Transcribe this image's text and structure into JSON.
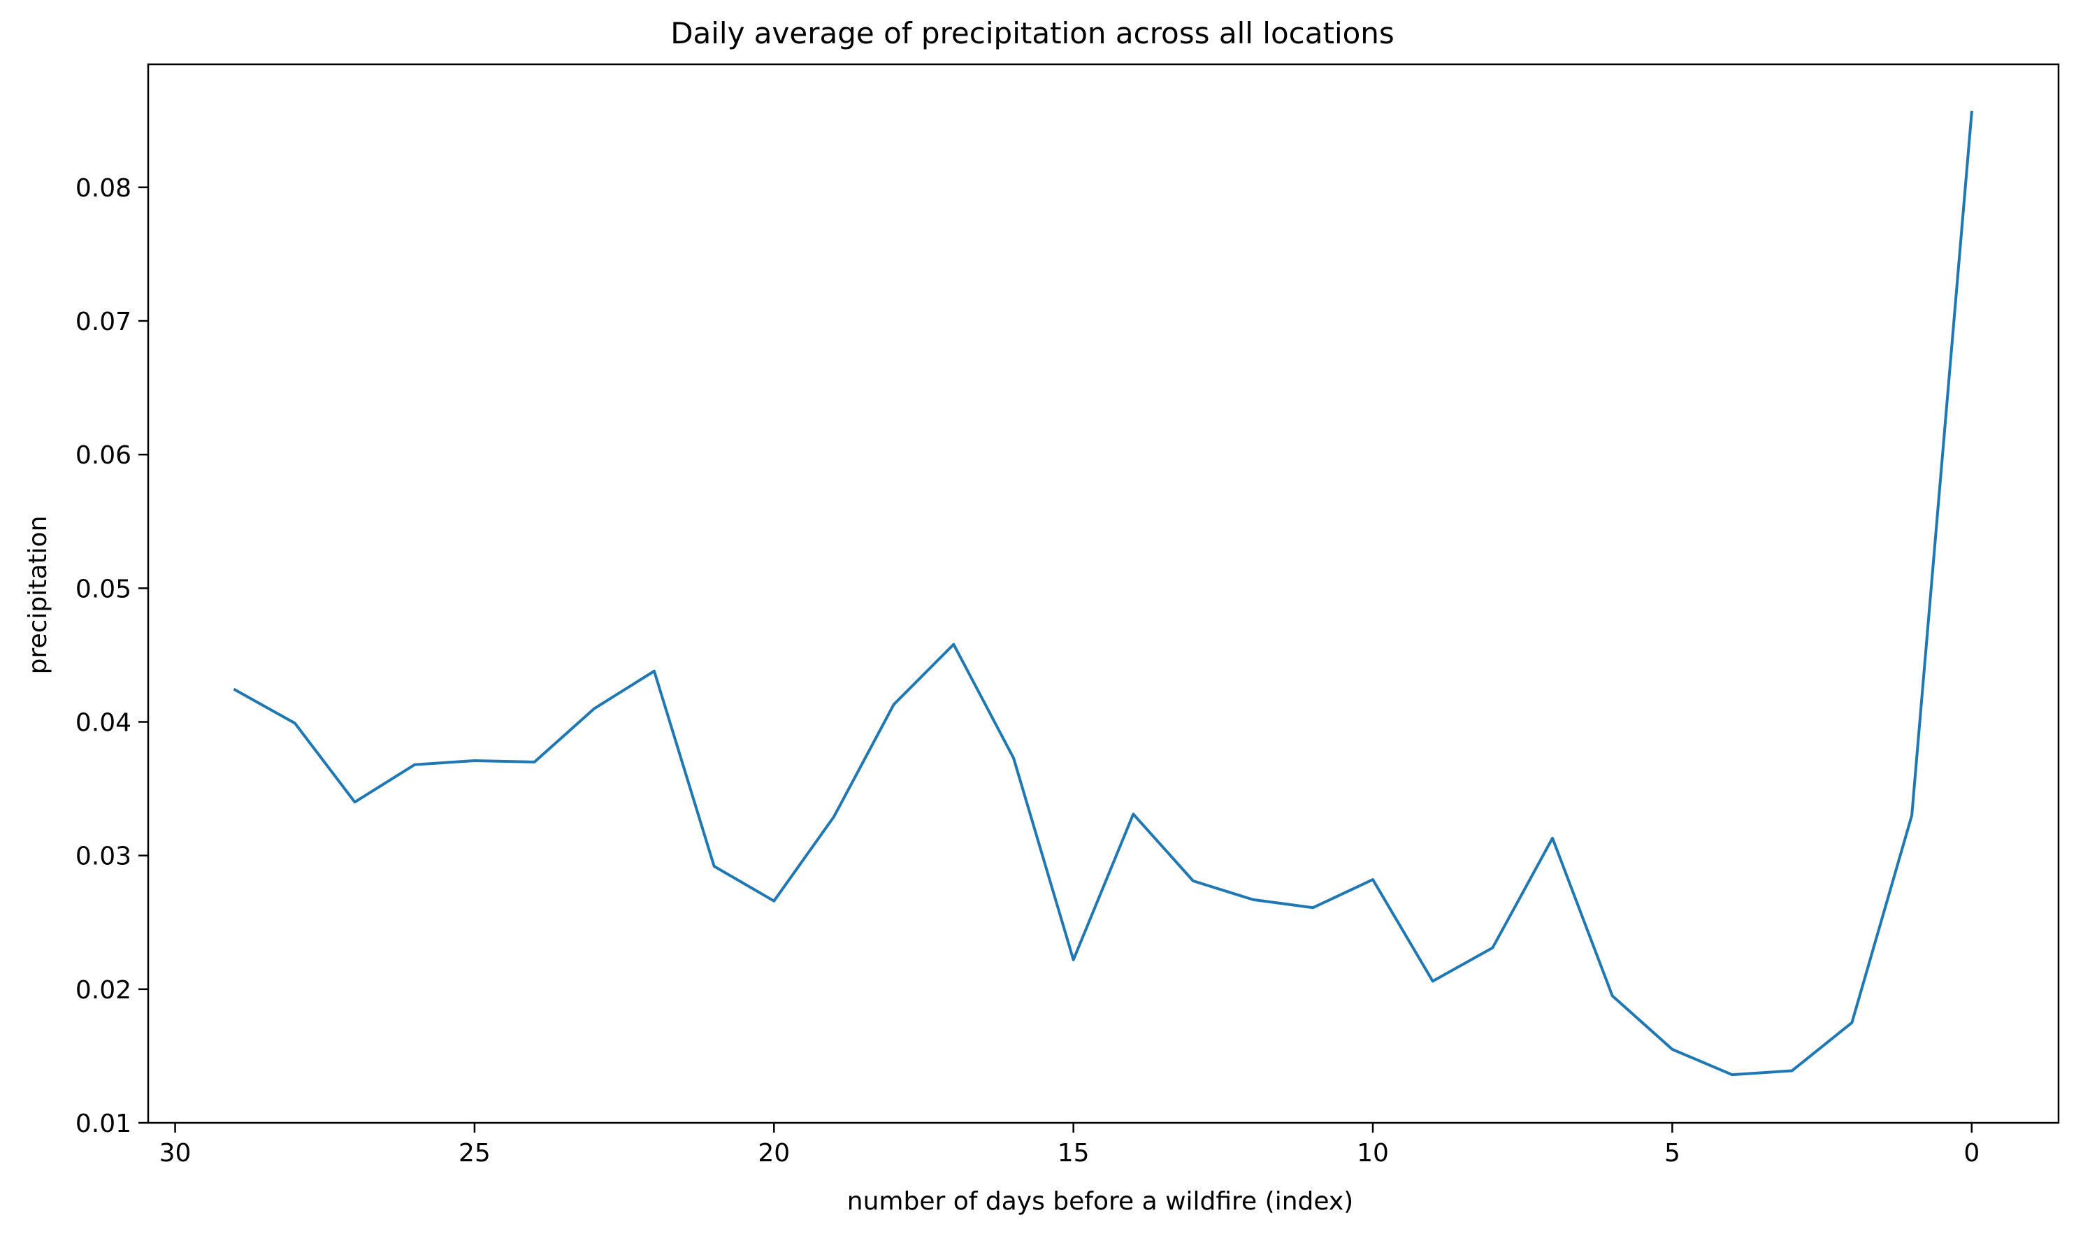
{
  "chart_data": {
    "type": "line",
    "title": "Daily average of precipitation across all locations",
    "xlabel": "number of days before a wildfire (index)",
    "ylabel": "precipitation",
    "x_inverted": true,
    "xlim": [
      30.45,
      -1.45
    ],
    "ylim": [
      0.01,
      0.0892
    ],
    "x_ticks": [
      30,
      25,
      20,
      15,
      10,
      5,
      0
    ],
    "x_tick_labels": [
      "30",
      "25",
      "20",
      "15",
      "10",
      "5",
      "0"
    ],
    "y_ticks": [
      0.01,
      0.02,
      0.03,
      0.04,
      0.05,
      0.06,
      0.07,
      0.08
    ],
    "y_tick_labels": [
      "0.01",
      "0.02",
      "0.03",
      "0.04",
      "0.05",
      "0.06",
      "0.07",
      "0.08"
    ],
    "grid": false,
    "series": [
      {
        "name": "precipitation",
        "color": "#1f77b4",
        "x": [
          29,
          28,
          27,
          26,
          25,
          24,
          23,
          22,
          21,
          20,
          19,
          18,
          17,
          16,
          15,
          14,
          13,
          12,
          11,
          10,
          9,
          8,
          7,
          6,
          5,
          4,
          3,
          2,
          1,
          0
        ],
        "values": [
          0.0424,
          0.0399,
          0.034,
          0.0368,
          0.0371,
          0.037,
          0.041,
          0.0438,
          0.0292,
          0.0266,
          0.0329,
          0.0413,
          0.0458,
          0.0373,
          0.0222,
          0.0331,
          0.0281,
          0.0267,
          0.0261,
          0.0282,
          0.0206,
          0.0231,
          0.0313,
          0.0195,
          0.0155,
          0.0136,
          0.0139,
          0.0175,
          0.033,
          0.0856
        ]
      }
    ]
  }
}
